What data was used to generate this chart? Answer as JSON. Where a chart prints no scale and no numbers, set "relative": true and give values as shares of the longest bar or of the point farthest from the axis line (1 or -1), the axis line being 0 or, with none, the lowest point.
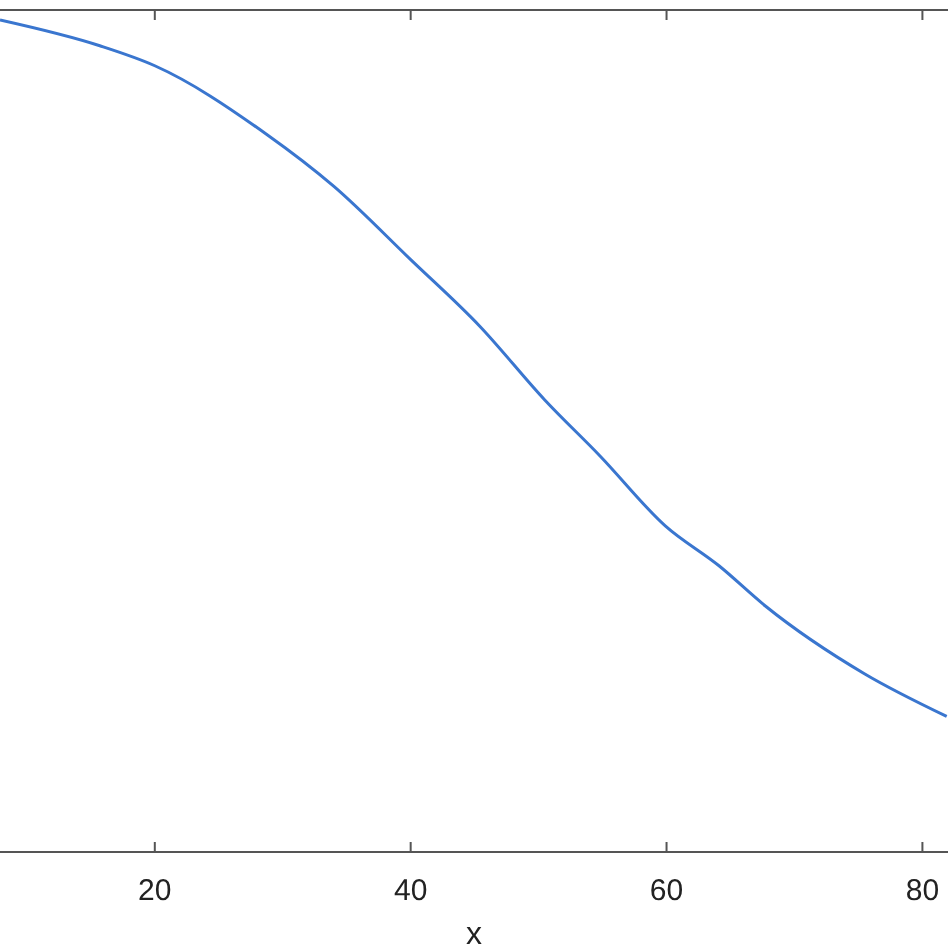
{
  "chart_data": {
    "type": "line",
    "xlabel": "x",
    "relative": true,
    "xlim": [
      7.9,
      82
    ],
    "xticks": [
      20,
      40,
      60,
      80
    ],
    "grid": false,
    "line_style": "solid",
    "tick_labels": "x",
    "series": [
      {
        "color": "#3a76cf",
        "x": [
          7.9,
          15.7,
          20,
          28.7,
          34,
          40,
          45.4,
          50.5,
          54.8,
          59.9,
          64.1,
          67.7,
          75.5,
          81.9
        ],
        "values": [
          1,
          0.969,
          0.945,
          0.863,
          0.8,
          0.712,
          0.632,
          0.543,
          0.476,
          0.392,
          0.344,
          0.296,
          0.214,
          0.163
        ]
      }
    ]
  }
}
